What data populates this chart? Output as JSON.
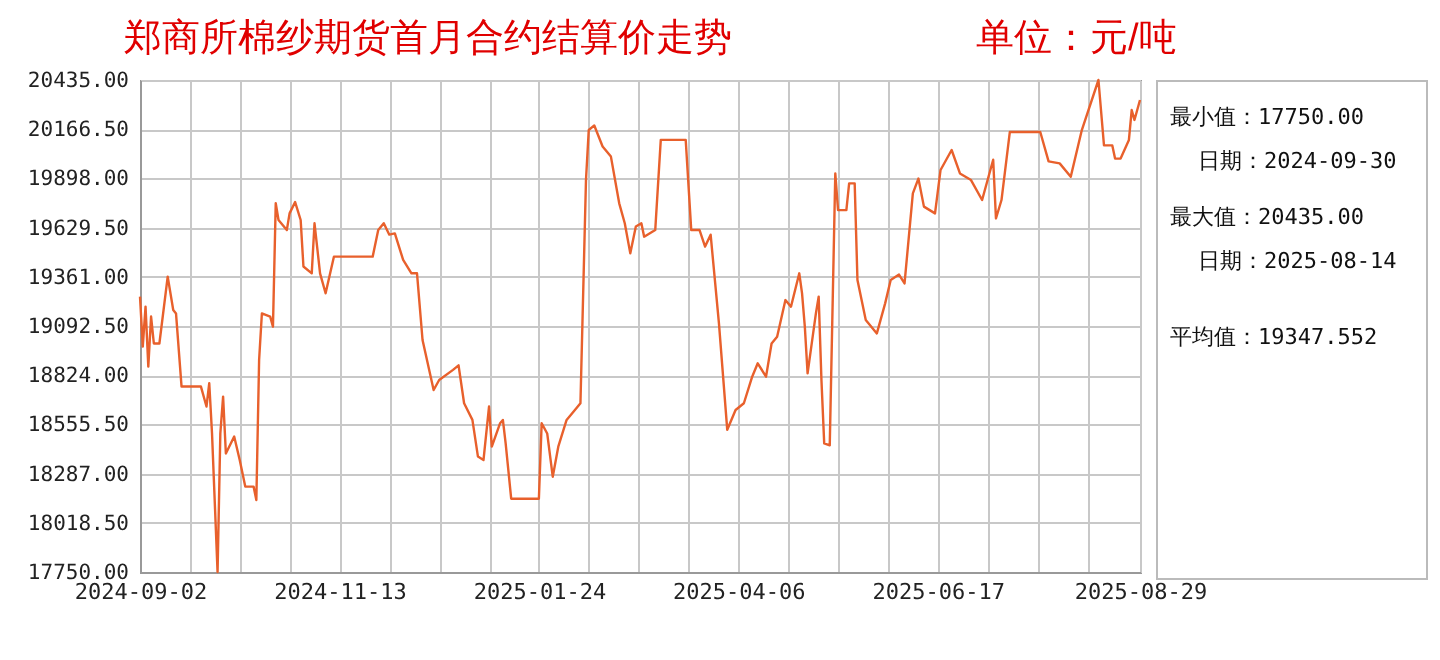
{
  "chart_data": {
    "type": "line",
    "title": "郑商所棉纱期货首月合约结算价走势",
    "annotations": [
      "单位：元/吨",
      "最小值：17750.00",
      "日期：2024-09-30",
      "最大值：20435.00",
      "日期：2025-08-14",
      "平均值：19347.552"
    ],
    "x": [
      "2024-09-02",
      "2024-09-03",
      "2024-09-04",
      "2024-09-05",
      "2024-09-06",
      "2024-09-07",
      "2024-09-09",
      "2024-09-12",
      "2024-09-14",
      "2024-09-15",
      "2024-09-17",
      "2024-09-24",
      "2024-09-26",
      "2024-09-27",
      "2024-09-28",
      "2024-09-30",
      "2024-10-01",
      "2024-10-02",
      "2024-10-03",
      "2024-10-06",
      "2024-10-08",
      "2024-10-10",
      "2024-10-13",
      "2024-10-14",
      "2024-10-15",
      "2024-10-16",
      "2024-10-19",
      "2024-10-20",
      "2024-10-21",
      "2024-10-22",
      "2024-10-25",
      "2024-10-26",
      "2024-10-28",
      "2024-10-30",
      "2024-10-31",
      "2024-11-03",
      "2024-11-04",
      "2024-11-06",
      "2024-11-08",
      "2024-11-11",
      "2024-11-25",
      "2024-11-27",
      "2024-11-29",
      "2024-12-01",
      "2024-12-03",
      "2024-12-06",
      "2024-12-09",
      "2024-12-11",
      "2024-12-13",
      "2024-12-17",
      "2024-12-19",
      "2024-12-24",
      "2024-12-26",
      "2024-12-28",
      "2024-12-31",
      "2025-01-02",
      "2025-01-04",
      "2025-01-06",
      "2025-01-07",
      "2025-01-10",
      "2025-01-11",
      "2025-01-12",
      "2025-01-14",
      "2025-01-24",
      "2025-01-25",
      "2025-01-27",
      "2025-01-29",
      "2025-01-31",
      "2025-02-03",
      "2025-02-06",
      "2025-02-08",
      "2025-02-10",
      "2025-02-11",
      "2025-02-13",
      "2025-02-16",
      "2025-02-19",
      "2025-02-22",
      "2025-02-24",
      "2025-02-26",
      "2025-02-28",
      "2025-03-02",
      "2025-03-03",
      "2025-03-07",
      "2025-03-09",
      "2025-03-18",
      "2025-03-20",
      "2025-03-23",
      "2025-03-25",
      "2025-03-27",
      "2025-03-30",
      "2025-04-02",
      "2025-04-05",
      "2025-04-08",
      "2025-04-11",
      "2025-04-13",
      "2025-04-16",
      "2025-04-18",
      "2025-04-20",
      "2025-04-23",
      "2025-04-25",
      "2025-04-28",
      "2025-04-29",
      "2025-04-30",
      "2025-05-01",
      "2025-05-04",
      "2025-05-05",
      "2025-05-06",
      "2025-05-07",
      "2025-05-09",
      "2025-05-11",
      "2025-05-12",
      "2025-05-15",
      "2025-05-16",
      "2025-05-18",
      "2025-05-19",
      "2025-05-22",
      "2025-05-26",
      "2025-05-29",
      "2025-05-31",
      "2025-06-03",
      "2025-06-05",
      "2025-06-08",
      "2025-06-10",
      "2025-06-12",
      "2025-06-16",
      "2025-06-18",
      "2025-06-22",
      "2025-06-25",
      "2025-06-29",
      "2025-07-03",
      "2025-07-07",
      "2025-07-08",
      "2025-07-10",
      "2025-07-13",
      "2025-07-24",
      "2025-07-27",
      "2025-07-31",
      "2025-08-04",
      "2025-08-08",
      "2025-08-14",
      "2025-08-16",
      "2025-08-19",
      "2025-08-20",
      "2025-08-22",
      "2025-08-25",
      "2025-08-26",
      "2025-08-27",
      "2025-08-29"
    ],
    "series": [
      {
        "color": "#e8602c",
        "values": [
          19253,
          18980,
          19198,
          18871,
          19144,
          18997,
          18997,
          19362,
          19180,
          19161,
          18762,
          18762,
          18653,
          18780,
          18506,
          17750,
          18506,
          18707,
          18397,
          18489,
          18361,
          18216,
          18216,
          18143,
          18907,
          19161,
          19144,
          19089,
          19762,
          19671,
          19616,
          19707,
          19769,
          19671,
          19417,
          19380,
          19653,
          19380,
          19271,
          19471,
          19471,
          19616,
          19653,
          19591,
          19598,
          19453,
          19380,
          19380,
          19016,
          18743,
          18798,
          18853,
          18878,
          18671,
          18580,
          18380,
          18361,
          18653,
          18434,
          18562,
          18580,
          18452,
          18150,
          18150,
          18562,
          18506,
          18270,
          18434,
          18580,
          18634,
          18671,
          19889,
          20162,
          20187,
          20072,
          20017,
          19762,
          19653,
          19489,
          19635,
          19653,
          19580,
          19616,
          20108,
          20108,
          19616,
          19616,
          19526,
          19591,
          19107,
          18526,
          18634,
          18671,
          18816,
          18889,
          18816,
          18997,
          19034,
          19234,
          19198,
          19380,
          19271,
          19089,
          18834,
          19161,
          19253,
          18798,
          18452,
          18441,
          19925,
          19725,
          19725,
          19871,
          19871,
          19344,
          19125,
          19052,
          19216,
          19344,
          19373,
          19325,
          19816,
          19897,
          19744,
          19707,
          19944,
          20053,
          19925,
          19889,
          19780,
          20000,
          19679,
          19780,
          20151,
          20151,
          19991,
          19980,
          19907,
          20162,
          20435,
          20078,
          20078,
          20006,
          20006,
          20108,
          20271,
          20217,
          20326
        ]
      }
    ],
    "xlim": [
      "2024-09-02",
      "2025-08-29"
    ],
    "xticks": [
      "2024-09-02",
      {
        "value": "2024-09-20",
        "label": null
      },
      {
        "value": "2024-10-08",
        "label": null
      },
      {
        "value": "2024-10-26",
        "label": null
      },
      "2024-11-13",
      {
        "value": "2024-12-01",
        "label": null
      },
      {
        "value": "2024-12-19",
        "label": null
      },
      {
        "value": "2025-01-06",
        "label": null
      },
      "2025-01-24",
      {
        "value": "2025-02-11",
        "label": null
      },
      {
        "value": "2025-03-01",
        "label": null
      },
      {
        "value": "2025-03-19",
        "label": null
      },
      "2025-04-06",
      {
        "value": "2025-04-24",
        "label": null
      },
      {
        "value": "2025-05-12",
        "label": null
      },
      {
        "value": "2025-05-30",
        "label": null
      },
      "2025-06-17",
      {
        "value": "2025-07-05",
        "label": null
      },
      {
        "value": "2025-07-23",
        "label": null
      },
      {
        "value": "2025-08-10",
        "label": null
      },
      "2025-08-29"
    ],
    "ylim": [
      17750,
      20435
    ],
    "yticks": [
      {
        "value": 17750,
        "label": "17750.00"
      },
      {
        "value": 18018.5,
        "label": "18018.50"
      },
      {
        "value": 18287,
        "label": "18287.00"
      },
      {
        "value": 18555.5,
        "label": "18555.50"
      },
      {
        "value": 18824,
        "label": "18824.00"
      },
      {
        "value": 19092.5,
        "label": "19092.50"
      },
      {
        "value": 19361,
        "label": "19361.00"
      },
      {
        "value": 19629.5,
        "label": "19629.50"
      },
      {
        "value": 19898,
        "label": "19898.00"
      },
      {
        "value": 20166.5,
        "label": "20166.50"
      },
      {
        "value": 20435,
        "label": "20435.00"
      }
    ],
    "grid": true,
    "marker": "none",
    "line_style": "solid"
  }
}
